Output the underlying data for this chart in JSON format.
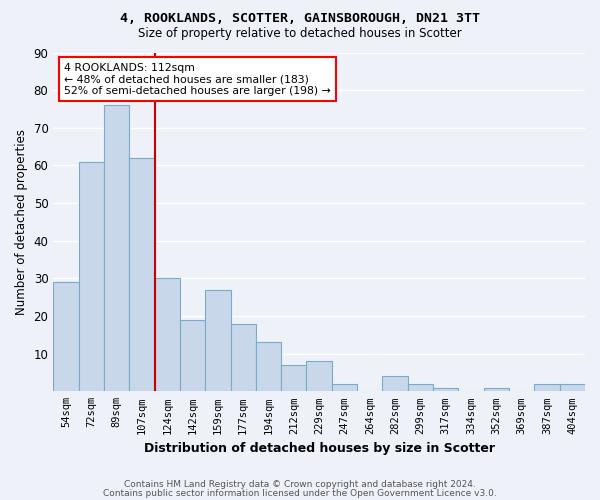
{
  "title1": "4, ROOKLANDS, SCOTTER, GAINSBOROUGH, DN21 3TT",
  "title2": "Size of property relative to detached houses in Scotter",
  "xlabel": "Distribution of detached houses by size in Scotter",
  "ylabel": "Number of detached properties",
  "categories": [
    "54sqm",
    "72sqm",
    "89sqm",
    "107sqm",
    "124sqm",
    "142sqm",
    "159sqm",
    "177sqm",
    "194sqm",
    "212sqm",
    "229sqm",
    "247sqm",
    "264sqm",
    "282sqm",
    "299sqm",
    "317sqm",
    "334sqm",
    "352sqm",
    "369sqm",
    "387sqm",
    "404sqm"
  ],
  "values": [
    29,
    61,
    76,
    62,
    30,
    19,
    27,
    18,
    13,
    7,
    8,
    2,
    0,
    4,
    2,
    1,
    0,
    1,
    0,
    2,
    2
  ],
  "bar_color": "#c8d8ea",
  "bar_edge_color": "#7aaac8",
  "red_line_x": 3.5,
  "annotation_text": "4 ROOKLANDS: 112sqm\n← 48% of detached houses are smaller (183)\n52% of semi-detached houses are larger (198) →",
  "annotation_box_color": "white",
  "annotation_box_edge_color": "red",
  "red_line_color": "#cc0000",
  "ylim": [
    0,
    90
  ],
  "yticks": [
    0,
    10,
    20,
    30,
    40,
    50,
    60,
    70,
    80,
    90
  ],
  "background_color": "#eef2f8",
  "grid_color": "white",
  "footer1": "Contains HM Land Registry data © Crown copyright and database right 2024.",
  "footer2": "Contains public sector information licensed under the Open Government Licence v3.0."
}
